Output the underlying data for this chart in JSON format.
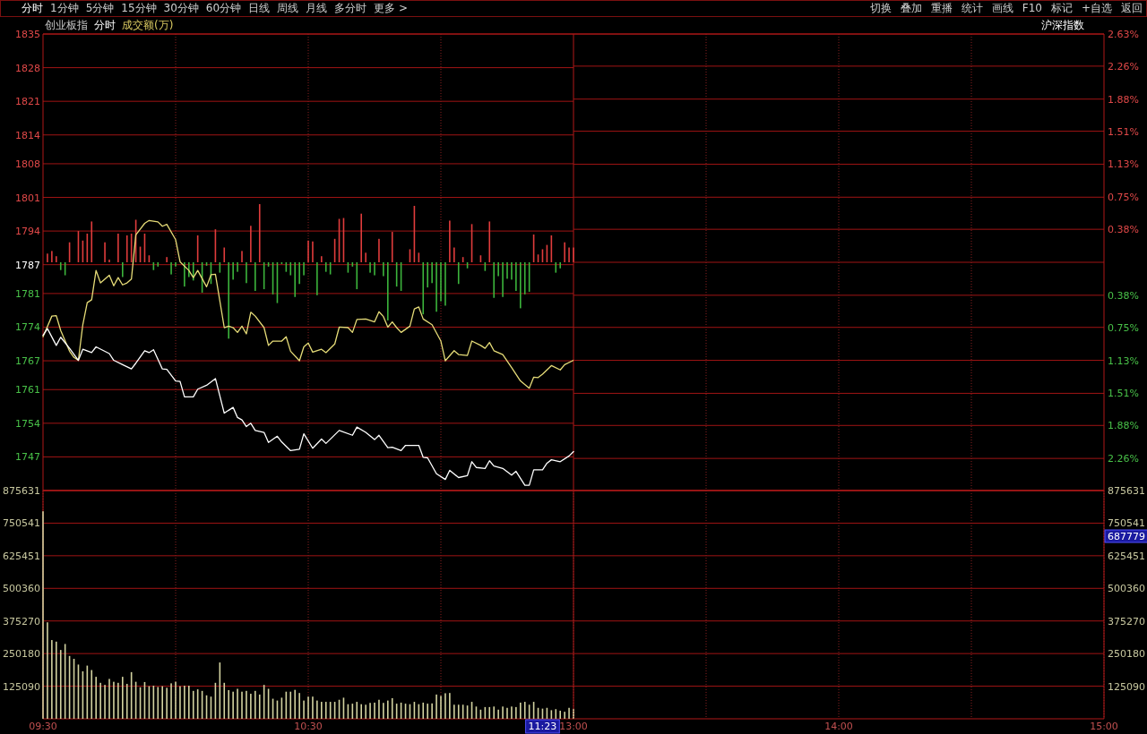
{
  "chart_data": [
    {
      "type": "other",
      "annotations": [
        "分时",
        "1分钟",
        "5分钟",
        "15分钟",
        "30分钟",
        "60分钟",
        "日线",
        "周线",
        "月线",
        "多分时",
        "更多 >"
      ]
    },
    {
      "type": "other",
      "annotations": [
        "切换",
        "叠加",
        "重播",
        "统计",
        "画线",
        "F10",
        "标记",
        "+自选",
        "返回"
      ]
    },
    {
      "type": "line",
      "annotations": [
        "创业板指",
        "分时",
        "成交额(万)"
      ],
      "grid": true,
      "tick_labels": "y",
      "xlim": [
        9.5,
        11.5
      ],
      "xticks": [
        {
          "value": 10,
          "label": null
        },
        {
          "value": 10.5,
          "label": null
        },
        {
          "value": 11,
          "label": null
        }
      ],
      "ylim": [
        1740,
        1835
      ],
      "yticks": [
        1835,
        1828,
        1821,
        1814,
        1808,
        1801,
        1794,
        1787,
        1781,
        1774,
        1767,
        1761,
        1754,
        1747
      ],
      "y2lim": [
        -2.63,
        2.63
      ],
      "series": [
        {
          "type": "bar",
          "axis": "y2",
          "color": "#e03c3c",
          "x": [
            9.5167,
            9.5333,
            9.55,
            9.6,
            9.6333,
            9.65,
            9.6667,
            9.6833,
            9.7333,
            9.75,
            9.7833,
            9.8167,
            9.8333,
            9.85,
            9.8667,
            9.8833,
            9.9,
            9.9667,
            10.0833,
            10.15,
            10.1833,
            10.25,
            10.2833,
            10.3167,
            10.5,
            10.5167,
            10.55,
            10.6,
            10.6167,
            10.6333,
            10.7,
            10.7167,
            10.7667,
            10.8167,
            10.8833,
            10.9,
            10.9167,
            11.0333,
            11.05,
            11.0833,
            11.1167,
            11.15,
            11.1833,
            11.35,
            11.3667,
            11.3833,
            11.4,
            11.4167,
            11.4667,
            11.4833,
            11.5
          ],
          "values": [
            0.1,
            0.13,
            0.07,
            0.23,
            0.36,
            0.25,
            0.33,
            0.47,
            0.23,
            0.03,
            0.33,
            0.31,
            0.33,
            0.49,
            0.18,
            0.33,
            0.08,
            0.06,
            0.31,
            0.38,
            0.17,
            0.13,
            0.42,
            0.67,
            0.25,
            0.24,
            0.07,
            0.27,
            0.5,
            0.51,
            0.56,
            0.11,
            0.27,
            0.35,
            0.15,
            0.65,
            0.11,
            0.48,
            0.17,
            0.06,
            0.44,
            0.08,
            0.47,
            0.32,
            0.09,
            0.15,
            0.2,
            0.31,
            0.23,
            0.17,
            0.17
          ]
        },
        {
          "type": "bar",
          "axis": "y2",
          "color": "#3cb43c",
          "x": [
            9.5667,
            9.5833,
            9.8,
            9.9167,
            9.9333,
            9.9833,
            10,
            10.0333,
            10.05,
            10.0667,
            10.1,
            10.1167,
            10.1333,
            10.1667,
            10.2,
            10.2167,
            10.2333,
            10.2667,
            10.3,
            10.3333,
            10.35,
            10.3667,
            10.3833,
            10.4,
            10.4167,
            10.4333,
            10.45,
            10.4667,
            10.4833,
            10.5333,
            10.5667,
            10.5833,
            10.65,
            10.6667,
            10.6833,
            10.7333,
            10.75,
            10.7833,
            10.8,
            10.8333,
            10.85,
            10.9333,
            10.95,
            10.9667,
            10.9833,
            11,
            11.0167,
            11.0667,
            11.1,
            11.1667,
            11.2,
            11.2167,
            11.2333,
            11.25,
            11.2667,
            11.2833,
            11.3,
            11.3167,
            11.3333,
            11.4333,
            11.45
          ],
          "values": [
            -0.09,
            -0.15,
            -0.17,
            -0.09,
            -0.05,
            -0.14,
            -0.05,
            -0.28,
            -0.17,
            -0.21,
            -0.35,
            -0.04,
            -0.25,
            -0.12,
            -0.88,
            -0.2,
            -0.11,
            -0.24,
            -0.33,
            -0.31,
            -0.05,
            -0.37,
            -0.47,
            -0.02,
            -0.11,
            -0.15,
            -0.4,
            -0.25,
            -0.15,
            -0.38,
            -0.11,
            -0.14,
            -0.12,
            -0.05,
            -0.31,
            -0.12,
            -0.15,
            -0.16,
            -0.67,
            -0.28,
            -0.33,
            -0.6,
            -0.29,
            -0.24,
            -0.57,
            -0.45,
            -0.5,
            -0.25,
            -0.07,
            -0.1,
            -0.41,
            -0.16,
            -0.4,
            -0.19,
            -0.2,
            -0.33,
            -0.53,
            -0.37,
            -0.34,
            -0.12,
            -0.07
          ]
        },
        {
          "type": "line",
          "color": "#e6dc78",
          "x": [
            9.5,
            9.5333,
            9.55,
            9.5667,
            9.6,
            9.6167,
            9.6333,
            9.65,
            9.6667,
            9.6833,
            9.7,
            9.7167,
            9.75,
            9.7667,
            9.7833,
            9.8,
            9.8167,
            9.8333,
            9.85,
            9.8833,
            9.9,
            9.9333,
            9.95,
            9.9667,
            10,
            10.0167,
            10.05,
            10.0667,
            10.0833,
            10.1167,
            10.1333,
            10.15,
            10.1833,
            10.2,
            10.2167,
            10.2333,
            10.25,
            10.2667,
            10.2833,
            10.3,
            10.3333,
            10.35,
            10.3667,
            10.4,
            10.4167,
            10.4333,
            10.4667,
            10.4833,
            10.5,
            10.5167,
            10.55,
            10.5667,
            10.6,
            10.6167,
            10.65,
            10.6667,
            10.6833,
            10.7167,
            10.75,
            10.7667,
            10.7833,
            10.8,
            10.8167,
            10.8333,
            10.85,
            10.8833,
            10.9,
            10.9167,
            10.9333,
            10.9667,
            11,
            11.0167,
            11.05,
            11.0667,
            11.1,
            11.1167,
            11.15,
            11.1667,
            11.1833,
            11.2,
            11.2333,
            11.2667,
            11.3,
            11.3333,
            11.35,
            11.3667,
            11.3833,
            11.4167,
            11.45,
            11.4667,
            11.5
          ],
          "values": [
            1772.0,
            1776.3,
            1776.4,
            1773.3,
            1769.0,
            1767.7,
            1767.1,
            1774.5,
            1779.1,
            1779.7,
            1785.8,
            1783.2,
            1784.8,
            1782.6,
            1784.3,
            1782.8,
            1783.2,
            1784.0,
            1793.2,
            1795.6,
            1796.2,
            1795.9,
            1795.0,
            1795.4,
            1792.2,
            1787.6,
            1785.8,
            1784.3,
            1785.8,
            1782.4,
            1784.9,
            1785.0,
            1773.9,
            1774.2,
            1773.9,
            1772.9,
            1774.2,
            1772.6,
            1777.1,
            1776.3,
            1773.9,
            1770.2,
            1771.1,
            1771.1,
            1772.0,
            1769.0,
            1767.0,
            1769.9,
            1770.7,
            1768.8,
            1769.4,
            1768.7,
            1770.5,
            1774.0,
            1773.9,
            1772.9,
            1775.6,
            1775.7,
            1775.1,
            1777.2,
            1776.2,
            1774.0,
            1775.1,
            1773.9,
            1772.9,
            1774.2,
            1777.8,
            1778.2,
            1775.7,
            1774.5,
            1771.1,
            1767.0,
            1769.1,
            1768.3,
            1768.1,
            1771.1,
            1770.2,
            1769.6,
            1770.8,
            1769.1,
            1768.3,
            1765.6,
            1762.8,
            1761.3,
            1763.6,
            1763.5,
            1764.2,
            1766.0,
            1765.1,
            1766.2,
            1767.1
          ]
        },
        {
          "type": "line",
          "color": "#ffffff",
          "x": [
            9.5,
            9.5167,
            9.55,
            9.5667,
            9.6,
            9.6333,
            9.65,
            9.6833,
            9.7,
            9.75,
            9.7667,
            9.8,
            9.8333,
            9.85,
            9.8833,
            9.9,
            9.9167,
            9.95,
            9.9667,
            10,
            10.0167,
            10.0333,
            10.0667,
            10.0833,
            10.1167,
            10.15,
            10.1833,
            10.2167,
            10.2333,
            10.25,
            10.2667,
            10.2833,
            10.3,
            10.3333,
            10.35,
            10.3833,
            10.4,
            10.4333,
            10.4667,
            10.4833,
            10.5167,
            10.55,
            10.5667,
            10.6167,
            10.6667,
            10.6833,
            10.7167,
            10.75,
            10.7667,
            10.8,
            10.8167,
            10.85,
            10.8667,
            10.9167,
            10.9333,
            10.95,
            10.9833,
            11.0167,
            11.0333,
            11.0667,
            11.1,
            11.1167,
            11.1333,
            11.1667,
            11.1833,
            11.2,
            11.2333,
            11.2667,
            11.2833,
            11.3167,
            11.3333,
            11.35,
            11.3833,
            11.4,
            11.4167,
            11.45,
            11.4833,
            11.5
          ],
          "values": [
            1772.3,
            1773.7,
            1770.2,
            1771.9,
            1769.6,
            1767.1,
            1769.4,
            1768.7,
            1769.9,
            1768.5,
            1767.1,
            1766.2,
            1765.3,
            1766.5,
            1769.1,
            1768.7,
            1769.3,
            1765.3,
            1765.2,
            1762.8,
            1762.7,
            1759.5,
            1759.5,
            1761.1,
            1761.9,
            1763.3,
            1756.1,
            1757.3,
            1755.2,
            1754.7,
            1753.3,
            1754.0,
            1752.5,
            1752.1,
            1750.0,
            1751.3,
            1750.1,
            1748.3,
            1748.6,
            1751.8,
            1748.8,
            1750.7,
            1749.8,
            1752.5,
            1751.5,
            1753.2,
            1752.1,
            1750.6,
            1751.5,
            1748.9,
            1749.0,
            1748.3,
            1749.4,
            1749.4,
            1746.9,
            1746.8,
            1743.5,
            1742.3,
            1744.2,
            1742.7,
            1743.1,
            1746.0,
            1744.8,
            1744.6,
            1746.2,
            1745.1,
            1744.6,
            1743.2,
            1744.0,
            1741.1,
            1741.1,
            1744.3,
            1744.3,
            1745.7,
            1746.4,
            1746.0,
            1747.2,
            1748.1
          ]
        }
      ]
    },
    {
      "type": "line",
      "annotations": [
        "沪深指数"
      ],
      "grid": true,
      "tick_labels": "y",
      "xlim": [
        13,
        15
      ],
      "xticks": [
        {
          "value": 13.5,
          "label": null
        },
        {
          "value": 14,
          "label": null
        },
        {
          "value": 14.5,
          "label": null
        }
      ],
      "y2lim": [
        -2.63,
        2.63
      ],
      "y2ticks": [
        {
          "value": 2.63,
          "label": "2.63%"
        },
        {
          "value": 2.26,
          "label": "2.26%"
        },
        {
          "value": 1.88,
          "label": "1.88%"
        },
        {
          "value": 1.51,
          "label": "1.51%"
        },
        {
          "value": 1.13,
          "label": "1.13%"
        },
        {
          "value": 0.75,
          "label": "0.75%"
        },
        {
          "value": 0.38,
          "label": "0.38%"
        },
        {
          "value": 0,
          "label": null
        },
        {
          "value": -0.38,
          "label": "0.38%"
        },
        {
          "value": -0.75,
          "label": "0.75%"
        },
        {
          "value": -1.13,
          "label": "1.13%"
        },
        {
          "value": -1.51,
          "label": "1.51%"
        },
        {
          "value": -1.88,
          "label": "1.88%"
        },
        {
          "value": -2.26,
          "label": "2.26%"
        }
      ]
    },
    {
      "type": "bar",
      "color": "#d2d2a0",
      "grid": true,
      "annotations": [
        {
          "text": "11:23",
          "x": 11.3833
        }
      ],
      "xlim": [
        9.5,
        11.5
      ],
      "xticks": [
        {
          "value": 9.5,
          "label": "09:30"
        },
        {
          "value": 10,
          "label": null
        },
        {
          "value": 10.5,
          "label": "10:30"
        },
        {
          "value": 11,
          "label": null
        }
      ],
      "ylim": [
        0,
        875631
      ],
      "yticks": [
        125090,
        250180,
        375270,
        500360,
        625451,
        750541,
        875631
      ],
      "x": [
        9.5,
        9.5167,
        9.5333,
        9.55,
        9.5667,
        9.5833,
        9.6,
        9.6167,
        9.6333,
        9.65,
        9.6667,
        9.6833,
        9.7,
        9.7167,
        9.7333,
        9.75,
        9.7667,
        9.7833,
        9.8,
        9.8167,
        9.8333,
        9.85,
        9.8667,
        9.8833,
        9.9,
        9.9167,
        9.9333,
        9.95,
        9.9667,
        9.9833,
        10,
        10.0167,
        10.0333,
        10.05,
        10.0667,
        10.0833,
        10.1,
        10.1167,
        10.1333,
        10.15,
        10.1667,
        10.1833,
        10.2,
        10.2167,
        10.2333,
        10.25,
        10.2667,
        10.2833,
        10.3,
        10.3167,
        10.3333,
        10.35,
        10.3667,
        10.3833,
        10.4,
        10.4167,
        10.4333,
        10.45,
        10.4667,
        10.4833,
        10.5,
        10.5167,
        10.5333,
        10.55,
        10.5667,
        10.5833,
        10.6,
        10.6167,
        10.6333,
        10.65,
        10.6667,
        10.6833,
        10.7,
        10.7167,
        10.7333,
        10.75,
        10.7667,
        10.7833,
        10.8,
        10.8167,
        10.8333,
        10.85,
        10.8667,
        10.8833,
        10.9,
        10.9167,
        10.9333,
        10.95,
        10.9667,
        10.9833,
        11,
        11.0167,
        11.0333,
        11.05,
        11.0667,
        11.0833,
        11.1,
        11.1167,
        11.1333,
        11.15,
        11.1667,
        11.1833,
        11.2,
        11.2167,
        11.2333,
        11.25,
        11.2667,
        11.2833,
        11.3,
        11.3167,
        11.3333,
        11.35,
        11.3667,
        11.3833,
        11.4,
        11.4167,
        11.4333,
        11.45,
        11.4667,
        11.4833,
        11.5
      ],
      "values": [
        796000,
        370000,
        302000,
        296000,
        264000,
        287000,
        241000,
        230000,
        208000,
        182000,
        204000,
        187000,
        161000,
        138000,
        130000,
        153000,
        142000,
        138000,
        161000,
        134000,
        179000,
        142000,
        121000,
        141000,
        125000,
        127000,
        122000,
        125000,
        119000,
        136000,
        142000,
        125000,
        127000,
        127000,
        107000,
        113000,
        107000,
        90000,
        85000,
        138000,
        216000,
        138000,
        110000,
        104000,
        115000,
        104000,
        107000,
        96000,
        107000,
        93000,
        130000,
        115000,
        77000,
        70000,
        81000,
        104000,
        104000,
        111000,
        99000,
        70000,
        85000,
        85000,
        70000,
        65000,
        65000,
        65000,
        65000,
        73000,
        81000,
        56000,
        58000,
        65000,
        56000,
        54000,
        61000,
        62000,
        73000,
        61000,
        70000,
        79000,
        58000,
        62000,
        58000,
        56000,
        65000,
        56000,
        62000,
        58000,
        59000,
        93000,
        88000,
        98000,
        99000,
        54000,
        54000,
        54000,
        51000,
        65000,
        47000,
        35000,
        45000,
        45000,
        47000,
        35000,
        47000,
        42000,
        47000,
        45000,
        62000,
        65000,
        54000,
        65000,
        42000,
        39000,
        42000,
        33000,
        37000,
        31000,
        27000,
        42000,
        37000
      ]
    },
    {
      "type": "bar",
      "grid": true,
      "annotations": [
        "687779"
      ],
      "xlim": [
        13,
        15
      ],
      "xticks": [
        {
          "value": 13,
          "label": "13:00"
        },
        {
          "value": 13.5,
          "label": null
        },
        {
          "value": 14,
          "label": "14:00"
        },
        {
          "value": 14.5,
          "label": null
        },
        {
          "value": 15,
          "label": "15:00"
        }
      ],
      "y2lim": [
        0,
        875631
      ],
      "y2ticks": [
        125090,
        250180,
        375270,
        500360,
        625451,
        750541,
        875631
      ]
    }
  ]
}
